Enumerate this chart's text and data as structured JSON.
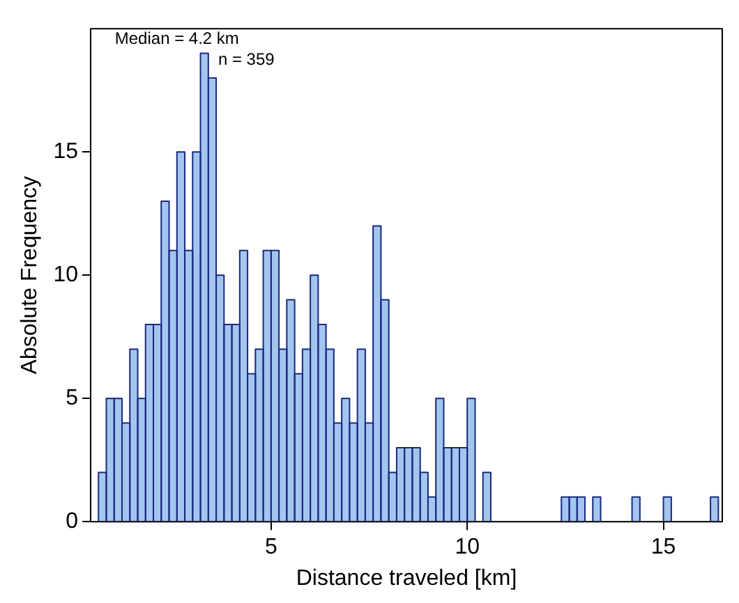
{
  "chart_data": {
    "type": "histogram",
    "xlabel": "Distance traveled [km]",
    "ylabel": "Absolute Frequency",
    "annotations": [
      "Median = 4.2 km",
      "n = 359"
    ],
    "bins": [
      0.6,
      0.8,
      1.0,
      1.2,
      1.4,
      1.6,
      1.8,
      2.0,
      2.2,
      2.4,
      2.6,
      2.8,
      3.0,
      3.2,
      3.4,
      3.6,
      3.8,
      4.0,
      4.2,
      4.4,
      4.6,
      4.8,
      5.0,
      5.2,
      5.4,
      5.6,
      5.8,
      6.0,
      6.2,
      6.4,
      6.6,
      6.8,
      7.0,
      7.2,
      7.4,
      7.6,
      7.8,
      8.0,
      8.2,
      8.4,
      8.6,
      8.8,
      9.0,
      9.2,
      9.4,
      9.6,
      9.8,
      10.0,
      10.2,
      10.4,
      10.6,
      10.8,
      11.0,
      11.2,
      11.4,
      11.6,
      11.8,
      12.0,
      12.2,
      12.4,
      12.6,
      12.8,
      13.0,
      13.2,
      13.4,
      13.6,
      13.8,
      14.0,
      14.2,
      14.4,
      14.6,
      14.8,
      15.0,
      15.2,
      15.4,
      15.6,
      15.8,
      16.0,
      16.2,
      16.4
    ],
    "values": [
      2,
      5,
      5,
      4,
      7,
      5,
      8,
      8,
      13,
      11,
      15,
      11,
      15,
      19,
      18,
      10,
      8,
      8,
      11,
      6,
      7,
      11,
      11,
      7,
      9,
      6,
      7,
      10,
      8,
      7,
      4,
      5,
      4,
      7,
      4,
      12,
      9,
      2,
      3,
      3,
      3,
      2,
      1,
      5,
      3,
      3,
      3,
      5,
      0,
      2,
      0,
      0,
      0,
      0,
      0,
      0,
      0,
      0,
      0,
      1,
      1,
      1,
      0,
      1,
      0,
      0,
      0,
      0,
      1,
      0,
      0,
      0,
      1,
      0,
      0,
      0,
      0,
      0,
      1
    ],
    "color": "#a3c6ee",
    "xlim": [
      0.4,
      16.5
    ],
    "xticks": [
      5,
      10,
      15
    ],
    "ylim": [
      0,
      20
    ],
    "yticks": [
      0,
      5,
      10,
      15
    ],
    "grid": false,
    "legend": false
  }
}
